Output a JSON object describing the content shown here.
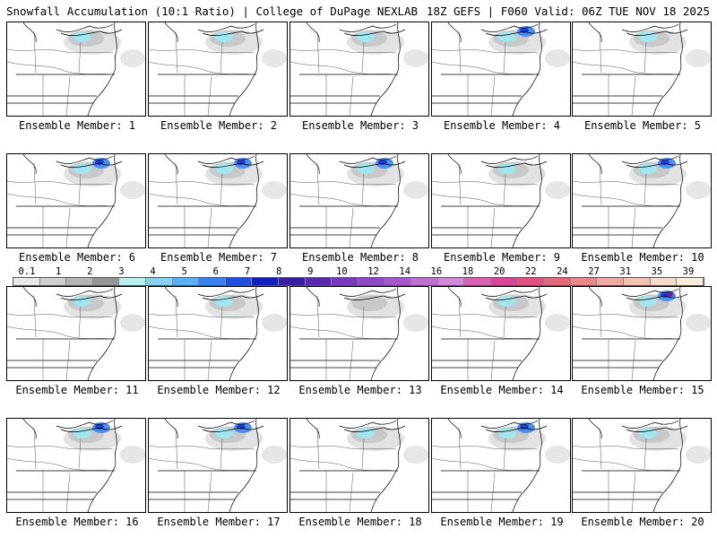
{
  "header": {
    "title_left": "Snowfall Accumulation (10:1 Ratio) | College of DuPage NEXLAB",
    "title_right": "18Z GEFS | F060 Valid: 06Z TUE NOV 18 2025"
  },
  "members": [
    {
      "label": "Ensemble Member: 1",
      "snow": 1
    },
    {
      "label": "Ensemble Member: 2",
      "snow": 1
    },
    {
      "label": "Ensemble Member: 3",
      "snow": 1
    },
    {
      "label": "Ensemble Member: 4",
      "snow": 2
    },
    {
      "label": "Ensemble Member: 5",
      "snow": 1
    },
    {
      "label": "Ensemble Member: 6",
      "snow": 2
    },
    {
      "label": "Ensemble Member: 7",
      "snow": 2
    },
    {
      "label": "Ensemble Member: 8",
      "snow": 2
    },
    {
      "label": "Ensemble Member: 9",
      "snow": 1
    },
    {
      "label": "Ensemble Member: 10",
      "snow": 2
    },
    {
      "label": "Ensemble Member: 11",
      "snow": 1
    },
    {
      "label": "Ensemble Member: 12",
      "snow": 1
    },
    {
      "label": "Ensemble Member: 13",
      "snow": 0
    },
    {
      "label": "Ensemble Member: 14",
      "snow": 1
    },
    {
      "label": "Ensemble Member: 15",
      "snow": 3
    },
    {
      "label": "Ensemble Member: 16",
      "snow": 2
    },
    {
      "label": "Ensemble Member: 17",
      "snow": 2
    },
    {
      "label": "Ensemble Member: 18",
      "snow": 1
    },
    {
      "label": "Ensemble Member: 19",
      "snow": 2
    },
    {
      "label": "Ensemble Member: 20",
      "snow": 1
    }
  ],
  "colorbar": {
    "labels": [
      "0.1",
      "1",
      "2",
      "3",
      "4",
      "5",
      "6",
      "7",
      "8",
      "9",
      "10",
      "12",
      "14",
      "16",
      "18",
      "20",
      "22",
      "24",
      "27",
      "31",
      "35",
      "39"
    ],
    "colors": [
      "#e8e8e8",
      "#cfcfcf",
      "#b4b4b4",
      "#969696",
      "#b8f0f0",
      "#88d0f0",
      "#5ab0f0",
      "#3a80f0",
      "#2050e0",
      "#1020c0",
      "#3a20a0",
      "#5a28b0",
      "#7a38c0",
      "#9048c8",
      "#a858c8",
      "#c070d0",
      "#d088d8",
      "#d860b8",
      "#d84898",
      "#e05080",
      "#e06878",
      "#e88888",
      "#f0a8a0",
      "#f4c0b0",
      "#f8d8c8",
      "#fcecdc"
    ]
  }
}
